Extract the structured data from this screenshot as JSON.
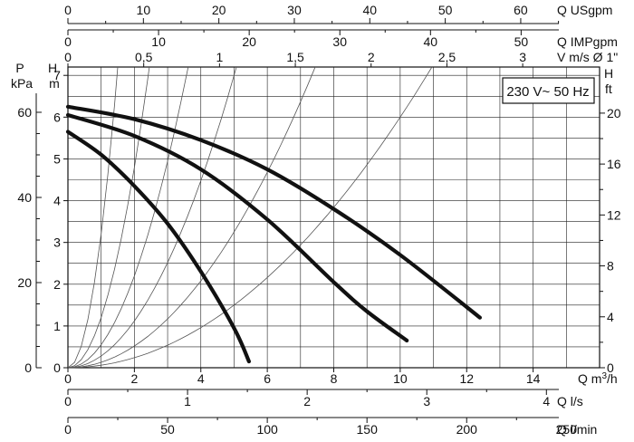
{
  "chart_data": {
    "type": "line",
    "title": "",
    "badge": "230 V~ 50 Hz",
    "xlabel": "Q m³/h",
    "ylabel": "H m",
    "xlim": [
      0,
      16
    ],
    "ylim": [
      0,
      7.2
    ],
    "grid": true,
    "x_ticks": [
      "0",
      "2",
      "4",
      "6",
      "8",
      "10",
      "12",
      "14"
    ],
    "y_ticks": [
      "0",
      "1",
      "2",
      "3",
      "4",
      "5",
      "6",
      "7"
    ],
    "top_axes": [
      {
        "label": "Q USgpm",
        "per_m3h": 4.403,
        "ticks": [
          {
            "v": 0,
            "t": "0"
          },
          {
            "v": 10,
            "t": "10"
          },
          {
            "v": 20,
            "t": "20"
          },
          {
            "v": 30,
            "t": "30"
          },
          {
            "v": 40,
            "t": "40"
          },
          {
            "v": 50,
            "t": "50"
          },
          {
            "v": 60,
            "t": "60"
          }
        ]
      },
      {
        "label": "Q IMPgpm",
        "per_m3h": 3.666,
        "ticks": [
          {
            "v": 0,
            "t": "0"
          },
          {
            "v": 10,
            "t": "10"
          },
          {
            "v": 20,
            "t": "20"
          },
          {
            "v": 30,
            "t": "30"
          },
          {
            "v": 40,
            "t": "40"
          },
          {
            "v": 50,
            "t": "50"
          }
        ]
      },
      {
        "label": "V m/s Ø 1\"",
        "per_m3h": 0.2192,
        "ticks": [
          {
            "v": 0,
            "t": "0"
          },
          {
            "v": 0.5,
            "t": "0,5"
          },
          {
            "v": 1,
            "t": "1"
          },
          {
            "v": 1.5,
            "t": "1,5"
          },
          {
            "v": 2,
            "t": "2"
          },
          {
            "v": 2.5,
            "t": "2,5"
          },
          {
            "v": 3,
            "t": "3"
          }
        ]
      }
    ],
    "bottom_axes": [
      {
        "label": "Q l/s",
        "per_m3h": 0.27778,
        "ticks": [
          {
            "v": 0,
            "t": "0"
          },
          {
            "v": 1,
            "t": "1"
          },
          {
            "v": 2,
            "t": "2"
          },
          {
            "v": 3,
            "t": "3"
          },
          {
            "v": 4,
            "t": "4"
          }
        ]
      },
      {
        "label": "Q l/min",
        "per_m3h": 16.6667,
        "ticks": [
          {
            "v": 0,
            "t": "0"
          },
          {
            "v": 50,
            "t": "50"
          },
          {
            "v": 100,
            "t": "100"
          },
          {
            "v": 150,
            "t": "150"
          },
          {
            "v": 200,
            "t": "200"
          },
          {
            "v": 250,
            "t": "250"
          }
        ]
      }
    ],
    "left_axis": {
      "label_top": "P",
      "label_bottom": "kPa",
      "per_m": 9.81,
      "ticks": [
        {
          "v": 0,
          "t": "0"
        },
        {
          "v": 20,
          "t": "20"
        },
        {
          "v": 40,
          "t": "40"
        },
        {
          "v": 60,
          "t": "60"
        }
      ]
    },
    "right_axis": {
      "label_top": "H",
      "label_bottom": "ft",
      "per_m": 3.2808,
      "ticks": [
        {
          "v": 0,
          "t": "0"
        },
        {
          "v": 4,
          "t": "4"
        },
        {
          "v": 8,
          "t": "8"
        },
        {
          "v": 12,
          "t": "12"
        },
        {
          "v": 16,
          "t": "16"
        },
        {
          "v": 20,
          "t": "20"
        }
      ]
    },
    "series": [
      {
        "x": [
          0,
          1,
          2,
          3,
          4,
          5,
          5.45
        ],
        "y": [
          5.65,
          5.1,
          4.35,
          3.45,
          2.3,
          0.95,
          0.15
        ]
      },
      {
        "x": [
          0,
          2,
          4,
          6,
          8,
          9,
          10.2
        ],
        "y": [
          6.05,
          5.55,
          4.75,
          3.55,
          2.05,
          1.35,
          0.65
        ]
      },
      {
        "x": [
          0,
          2,
          4,
          6,
          8,
          10,
          12.4
        ],
        "y": [
          6.25,
          5.95,
          5.45,
          4.75,
          3.8,
          2.7,
          1.2
        ]
      }
    ],
    "system_curves_k": [
      3.2,
      1.2,
      0.55,
      0.28,
      0.13,
      0.06
    ]
  }
}
